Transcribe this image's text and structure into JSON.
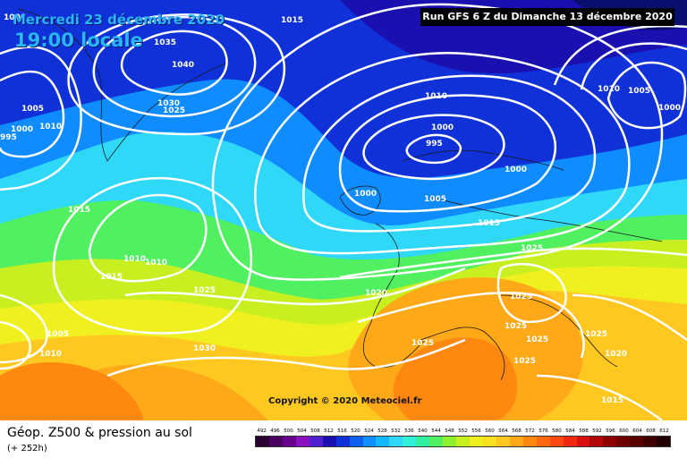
{
  "header": {
    "date": "Mercredi 23 décembre 2020",
    "local_time": "19:00 locale",
    "run_info": "Run GFS 6 Z du Dimanche 13 décembre 2020"
  },
  "copyright": "Copyright © 2020 Meteociel.fr",
  "footer": {
    "title": "Géop. Z500 & pression au sol",
    "lead_time": "(+ 252h)"
  },
  "colors": {
    "ocean_high": "#ff6a00",
    "cold_core": "#0a0f6e",
    "isobar": "#ffffff"
  },
  "isobar_labels": [
    {
      "text": "1015"
    },
    {
      "text": "1035"
    },
    {
      "text": "1040"
    },
    {
      "text": "1030"
    },
    {
      "text": "1025"
    },
    {
      "text": "1005"
    },
    {
      "text": "1000"
    },
    {
      "text": "995"
    },
    {
      "text": "1010"
    },
    {
      "text": "1000"
    },
    {
      "text": "1015"
    },
    {
      "text": "1010"
    },
    {
      "text": "1010"
    },
    {
      "text": "1015"
    },
    {
      "text": "1025"
    },
    {
      "text": "1005"
    },
    {
      "text": "1010"
    },
    {
      "text": "1030"
    },
    {
      "text": "1010"
    },
    {
      "text": "1000"
    },
    {
      "text": "995"
    },
    {
      "text": "1000"
    },
    {
      "text": "1000"
    },
    {
      "text": "1005"
    },
    {
      "text": "1015"
    },
    {
      "text": "1025"
    },
    {
      "text": "1020"
    },
    {
      "text": "1025"
    },
    {
      "text": "1025"
    },
    {
      "text": "1025"
    },
    {
      "text": "1025"
    },
    {
      "text": "1025"
    },
    {
      "text": "1025"
    },
    {
      "text": "1020"
    },
    {
      "text": "1015"
    },
    {
      "text": "1010"
    },
    {
      "text": "1005"
    },
    {
      "text": "1000"
    }
  ],
  "legend": {
    "scale_values": [
      "492",
      "496",
      "500",
      "504",
      "508",
      "512",
      "516",
      "520",
      "524",
      "528",
      "532",
      "536",
      "540",
      "544",
      "548",
      "552",
      "556",
      "560",
      "564",
      "568",
      "572",
      "576",
      "580",
      "584",
      "588",
      "592",
      "596",
      "600",
      "604",
      "608",
      "612"
    ],
    "scale_colors": [
      "#2a0033",
      "#4a0060",
      "#6a0090",
      "#8a10c0",
      "#5020d0",
      "#1a10b0",
      "#1030d8",
      "#1060f0",
      "#1090ff",
      "#10b8ff",
      "#30d8f8",
      "#30f0d8",
      "#30f0a0",
      "#50f060",
      "#90f030",
      "#c8f020",
      "#f0f020",
      "#f8e020",
      "#ffc820",
      "#ffa818",
      "#ff8810",
      "#ff6810",
      "#ff4810",
      "#f02810",
      "#d81010",
      "#b00808",
      "#900000",
      "#700000",
      "#580000",
      "#400000",
      "#200000"
    ]
  }
}
